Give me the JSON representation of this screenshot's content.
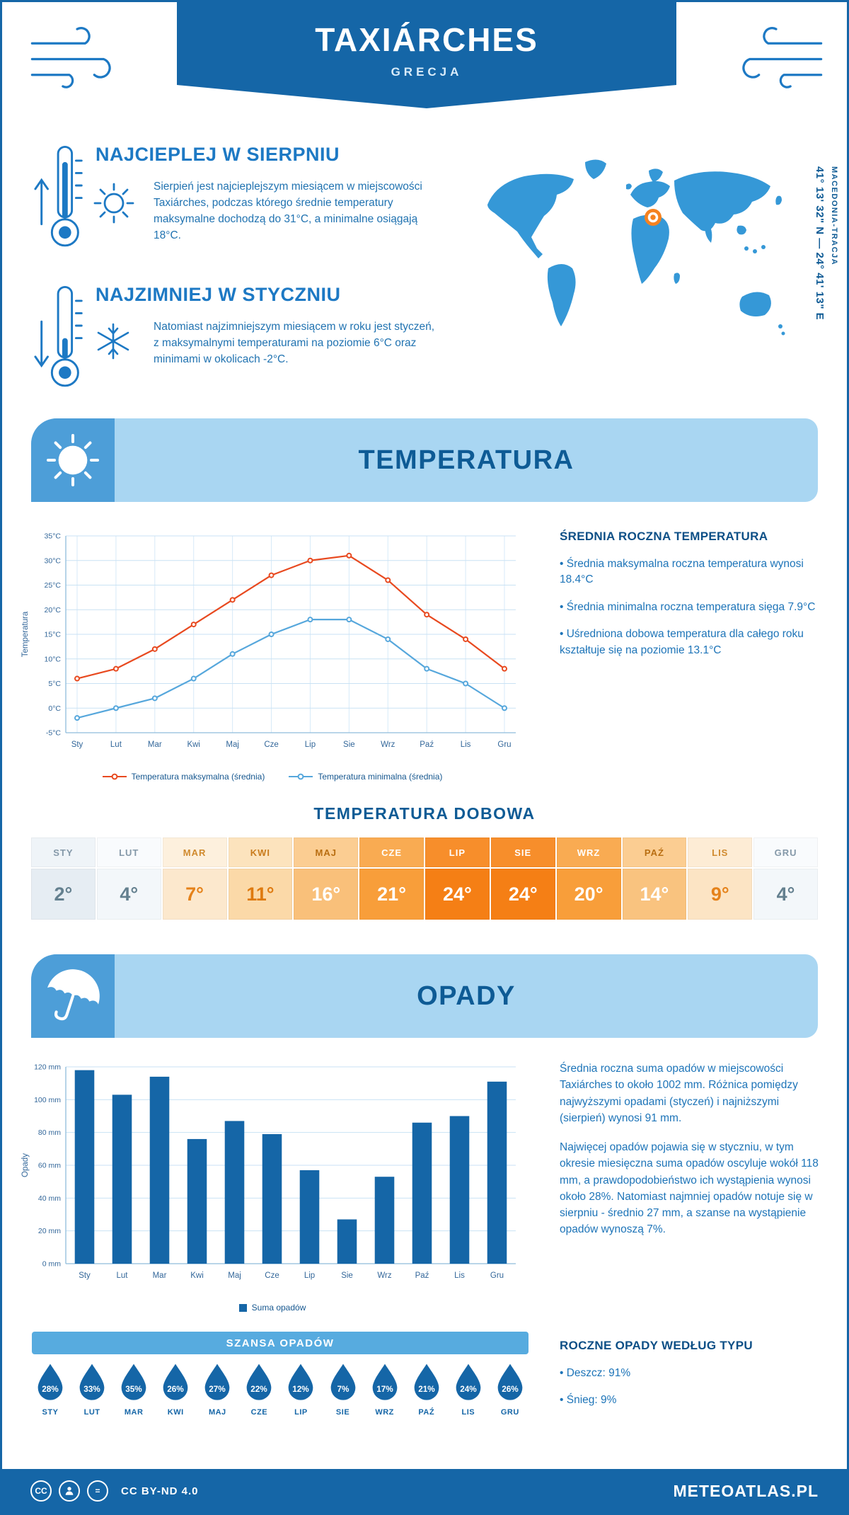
{
  "header": {
    "title": "TAXIÁRCHES",
    "subtitle": "GRECJA"
  },
  "location": {
    "region": "MACEDONIA-TRACJA",
    "coordinates": "41° 13' 32\" N — 24° 41' 13\" E"
  },
  "highlights": {
    "warm": {
      "title": "NAJCIEPLEJ W SIERPNIU",
      "text": "Sierpień jest najcieplejszym miesiącem w miejscowości Taxiárches, podczas którego średnie temperatury maksymalne dochodzą do 31°C, a minimalne osiągają 18°C."
    },
    "cold": {
      "title": "NAJZIMNIEJ W STYCZNIU",
      "text": "Natomiast najzimniejszym miesiącem w roku jest styczeń, z maksymalnymi temperaturami na poziomie 6°C oraz minimami w okolicach -2°C."
    }
  },
  "months": {
    "short": [
      "Sty",
      "Lut",
      "Mar",
      "Kwi",
      "Maj",
      "Cze",
      "Lip",
      "Sie",
      "Wrz",
      "Paź",
      "Lis",
      "Gru"
    ],
    "upper": [
      "STY",
      "LUT",
      "MAR",
      "KWI",
      "MAJ",
      "CZE",
      "LIP",
      "SIE",
      "WRZ",
      "PAŹ",
      "LIS",
      "GRU"
    ]
  },
  "temperature": {
    "section_title": "TEMPERATURA",
    "summary_title": "ŚREDNIA ROCZNA TEMPERATURA",
    "bullets": [
      "Średnia maksymalna roczna temperatura wynosi 18.4°C",
      "Średnia minimalna roczna temperatura sięga 7.9°C",
      "Uśredniona dobowa temperatura dla całego roku kształtuje się na poziomie 13.1°C"
    ],
    "daily_title": "TEMPERATURA DOBOWA",
    "daily_values": [
      "2°",
      "4°",
      "7°",
      "11°",
      "16°",
      "21°",
      "24°",
      "24°",
      "20°",
      "14°",
      "9°",
      "4°"
    ],
    "daily_cell_colors": [
      {
        "hb": "#eff4f8",
        "ht": "#8599a9",
        "vb": "#e6edf3",
        "vt": "#64808f"
      },
      {
        "hb": "#f9fbfd",
        "ht": "#8599a9",
        "vb": "#f3f7fa",
        "vt": "#64808f"
      },
      {
        "hb": "#fdf0dd",
        "ht": "#d08a2e",
        "vb": "#fce8cd",
        "vt": "#e5821a"
      },
      {
        "hb": "#fce3bd",
        "ht": "#c97c1d",
        "vb": "#fbd9a8",
        "vt": "#de7a10"
      },
      {
        "hb": "#fbcd92",
        "ht": "#b96e12",
        "vb": "#f9c07a",
        "vt": "#ffffff"
      },
      {
        "hb": "#f9ab52",
        "ht": "#ffffff",
        "vb": "#f89e3a",
        "vt": "#ffffff"
      },
      {
        "hb": "#f78e2b",
        "ht": "#ffffff",
        "vb": "#f57f15",
        "vt": "#ffffff"
      },
      {
        "hb": "#f78e2b",
        "ht": "#ffffff",
        "vb": "#f57f15",
        "vt": "#ffffff"
      },
      {
        "hb": "#f9ab52",
        "ht": "#ffffff",
        "vb": "#f89e3a",
        "vt": "#ffffff"
      },
      {
        "hb": "#fbcd92",
        "ht": "#b96e12",
        "vb": "#f9c37f",
        "vt": "#ffffff"
      },
      {
        "hb": "#fdecd5",
        "ht": "#d08a2e",
        "vb": "#fce4c4",
        "vt": "#e5821a"
      },
      {
        "hb": "#f9fbfd",
        "ht": "#8599a9",
        "vb": "#f3f7fa",
        "vt": "#64808f"
      }
    ]
  },
  "precipitation": {
    "section_title": "OPADY",
    "paragraphs": [
      "Średnia roczna suma opadów w miejscowości Taxiárches to około 1002 mm. Różnica pomiędzy najwyższymi opadami (styczeń) i najniższymi (sierpień) wynosi 91 mm.",
      "Najwięcej opadów pojawia się w styczniu, w tym okresie miesięczna suma opadów oscyluje wokół 118 mm, a prawdopodobieństwo ich wystąpienia wynosi około 28%. Natomiast najmniej opadów notuje się w sierpniu - średnio 27 mm, a szanse na wystąpienie opadów wynoszą 7%."
    ],
    "legend": "Suma opadów",
    "chance_title": "SZANSA OPADÓW",
    "chance_percent": [
      "28%",
      "33%",
      "35%",
      "26%",
      "27%",
      "22%",
      "12%",
      "7%",
      "17%",
      "21%",
      "24%",
      "26%"
    ],
    "type_title": "ROCZNE OPADY WEDŁUG TYPU",
    "type_bullets": [
      "Deszcz: 91%",
      "Śnieg: 9%"
    ]
  },
  "chart_data": [
    {
      "type": "line",
      "title": "TEMPERATURA",
      "x": [
        "Sty",
        "Lut",
        "Mar",
        "Kwi",
        "Maj",
        "Cze",
        "Lip",
        "Sie",
        "Wrz",
        "Paź",
        "Lis",
        "Gru"
      ],
      "series": [
        {
          "name": "Temperatura maksymalna (średnia)",
          "color": "#e8491f",
          "values": [
            6,
            8,
            12,
            17,
            22,
            27,
            30,
            31,
            26,
            19,
            14,
            8
          ]
        },
        {
          "name": "Temperatura minimalna (średnia)",
          "color": "#56a7dc",
          "values": [
            -2,
            0,
            2,
            6,
            11,
            15,
            18,
            18,
            14,
            8,
            5,
            0
          ]
        }
      ],
      "xlabel": "",
      "ylabel": "Temperatura",
      "ylim": [
        -5,
        35
      ],
      "ytick_step": 5,
      "ytick_suffix": "°C",
      "grid": true,
      "legend_position": "bottom"
    },
    {
      "type": "bar",
      "title": "OPADY",
      "categories": [
        "Sty",
        "Lut",
        "Mar",
        "Kwi",
        "Maj",
        "Cze",
        "Lip",
        "Sie",
        "Wrz",
        "Paź",
        "Lis",
        "Gru"
      ],
      "values": [
        118,
        103,
        114,
        76,
        87,
        79,
        57,
        27,
        53,
        86,
        90,
        111
      ],
      "series_name": "Suma opadów",
      "color": "#1566a7",
      "xlabel": "",
      "ylabel": "Opady",
      "ylim": [
        0,
        120
      ],
      "ytick_step": 20,
      "ytick_suffix": " mm",
      "grid": true,
      "legend_position": "bottom"
    }
  ],
  "footer": {
    "license": "CC BY-ND 4.0",
    "brand": "METEOATLAS.PL"
  },
  "colors": {
    "primary": "#1566a7",
    "section_banner": "#a9d6f2",
    "icon_box": "#4d9ed8",
    "chance_bar": "#57abdf",
    "max_line": "#e8491f",
    "min_line": "#56a7dc",
    "bar": "#1566a7",
    "map_land": "#3598d7",
    "marker": "#f58220"
  }
}
